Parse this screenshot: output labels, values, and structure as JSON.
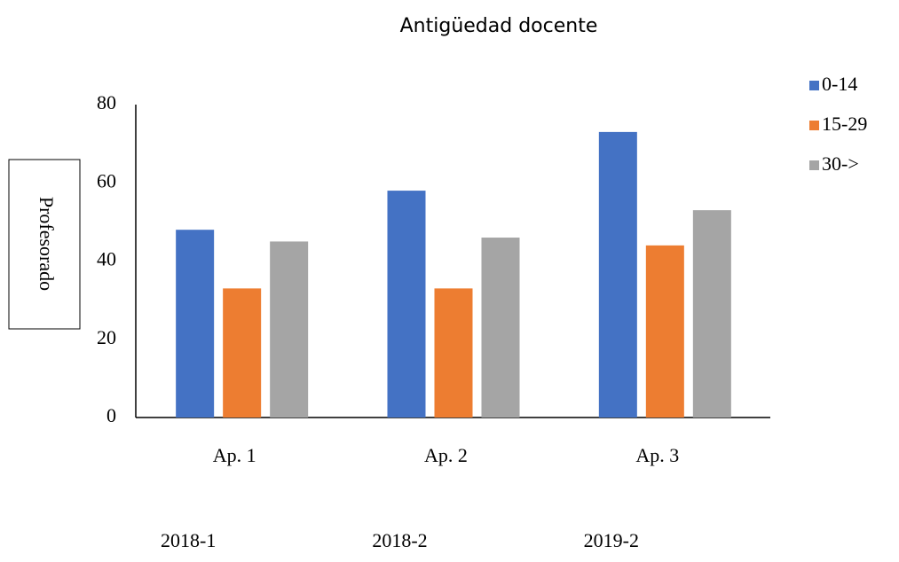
{
  "chart_data": {
    "type": "bar",
    "title": "Antigüedad docente",
    "y_label": "Profesorado",
    "categories": [
      "Ap. 1",
      "Ap. 2",
      "Ap. 3"
    ],
    "period_labels": [
      "2018-1",
      "2018-2",
      "2019-2"
    ],
    "series": [
      {
        "name": "0-14",
        "color": "#4472c4",
        "values": [
          48,
          58,
          73
        ]
      },
      {
        "name": "15-29",
        "color": "#ed7d31",
        "values": [
          33,
          33,
          44
        ]
      },
      {
        "name": "30->",
        "color": "#a5a5a5",
        "values": [
          45,
          46,
          53
        ]
      }
    ],
    "ylim": [
      0,
      80
    ],
    "yticks": [
      0,
      20,
      40,
      60,
      80
    ],
    "grid": false,
    "legend": "right"
  }
}
